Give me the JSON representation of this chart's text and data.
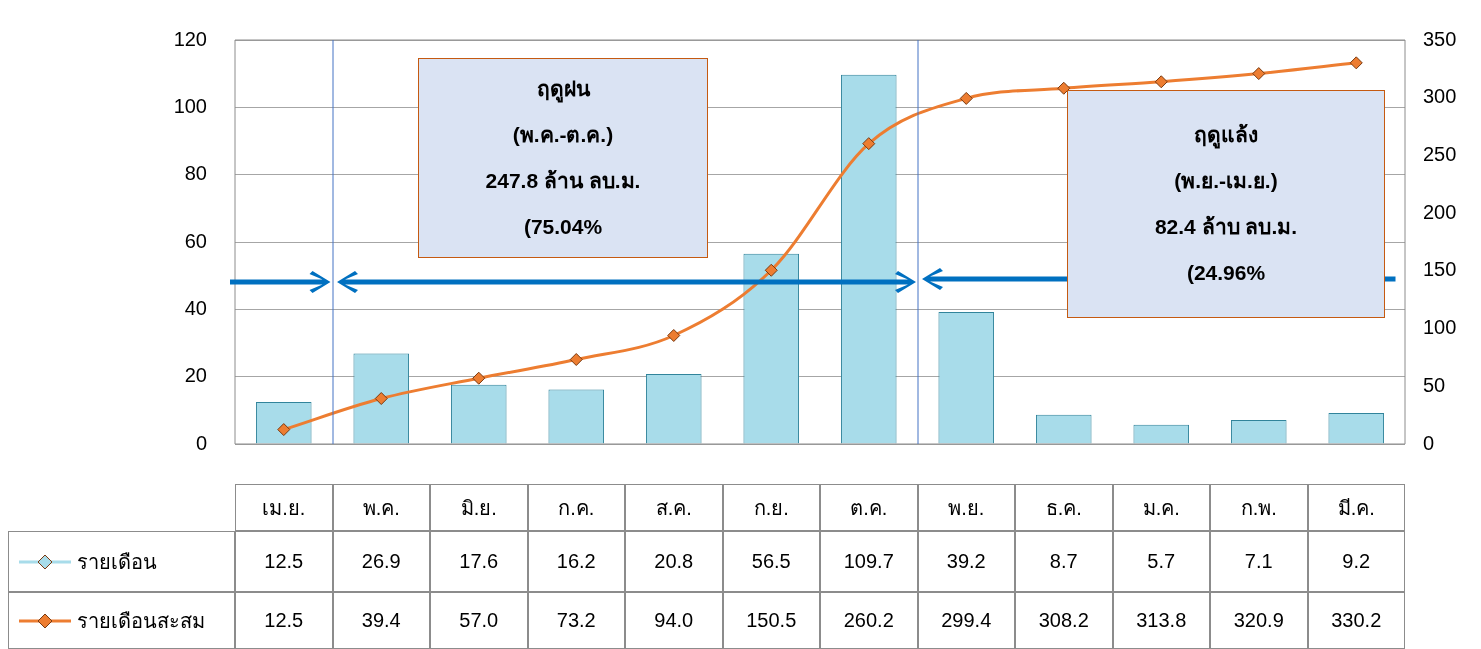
{
  "chart_data": {
    "type": "bar",
    "categories": [
      "เม.ย.",
      "พ.ค.",
      "มิ.ย.",
      "ก.ค.",
      "ส.ค.",
      "ก.ย.",
      "ต.ค.",
      "พ.ย.",
      "ธ.ค.",
      "ม.ค.",
      "ก.พ.",
      "มี.ค."
    ],
    "series": [
      {
        "name": "รายเดือน",
        "color": "#a8dcea",
        "values": [
          12.5,
          26.9,
          17.6,
          16.2,
          20.8,
          56.5,
          109.7,
          39.2,
          8.7,
          5.7,
          7.1,
          9.2
        ],
        "value_labels": [
          "12.5",
          "26.9",
          "17.6",
          "16.2",
          "20.8",
          "56.5",
          "109.7",
          "39.2",
          "8.7",
          "5.7",
          "7.1",
          "9.2"
        ]
      },
      {
        "name": "รายเดือนสะสม",
        "type": "line",
        "axis": "y2",
        "color": "#ed7d31",
        "values": [
          12.5,
          39.4,
          57.0,
          73.2,
          94.0,
          150.5,
          260.2,
          299.4,
          308.2,
          313.8,
          320.9,
          330.2
        ],
        "value_labels": [
          "12.5",
          "39.4",
          "57.0",
          "73.2",
          "94.0",
          "150.5",
          "260.2",
          "299.4",
          "308.2",
          "313.8",
          "320.9",
          "330.2"
        ]
      }
    ],
    "ylim": [
      0,
      120
    ],
    "yticks": [
      0,
      20,
      40,
      60,
      80,
      100,
      120
    ],
    "y2lim": [
      0,
      350
    ],
    "y2ticks": [
      0,
      50,
      100,
      150,
      200,
      250,
      300,
      350
    ],
    "annotations": [
      "ฤดูฝน\n(พ.ค.-ต.ค.)\n247.8 ล้าน ลบ.ม.\n(75.04%",
      "ฤดูแล้ง\n(พ.ย.-เม.ย.)\n82.4 ล้าบ ลบ.ม.\n(24.96%"
    ],
    "grid": "y",
    "legend": "bottom",
    "marker": "diamond",
    "line_style": "solid"
  }
}
